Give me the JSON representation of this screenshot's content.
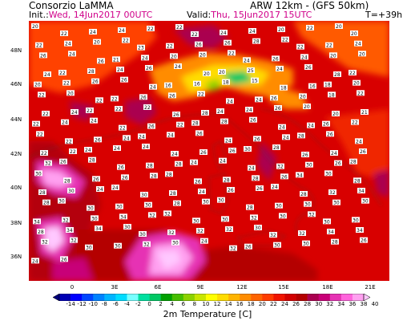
{
  "header": {
    "organization": "Consorzio LaMMA",
    "model": "ARW 12km - (GFS 50km)",
    "init_label": "Init.:",
    "init_value": "Wed, 14Jun2017 00UTC",
    "valid_label": "Valid:",
    "valid_value": "Thu, 15Jun2017 15UTC",
    "forecast_step": "T=+39h"
  },
  "map": {
    "lon_labels": [
      "0",
      "3E",
      "6E",
      "9E",
      "12E",
      "15E",
      "18E",
      "21E"
    ],
    "lat_labels": [
      "48N",
      "46N",
      "44N",
      "42N",
      "40N",
      "38N",
      "36N"
    ],
    "station_values": [
      "20",
      "22",
      "24",
      "24",
      "22",
      "22",
      "22",
      "24",
      "24",
      "20",
      "22",
      "20",
      "20",
      "22",
      "24",
      "20",
      "22",
      "23",
      "22",
      "26",
      "26",
      "28",
      "22",
      "22",
      "22",
      "24",
      "26",
      "24",
      "26",
      "21",
      "24",
      "20",
      "20",
      "22",
      "24",
      "26",
      "24",
      "20",
      "20",
      "24",
      "22",
      "28",
      "24",
      "26",
      "24",
      "20",
      "20",
      "25",
      "24",
      "26",
      "28",
      "22",
      "20",
      "22",
      "26",
      "26",
      "24",
      "16",
      "16",
      "18",
      "15",
      "18",
      "16",
      "18",
      "20",
      "22",
      "20",
      "22",
      "22",
      "26",
      "26",
      "22",
      "24",
      "24",
      "26",
      "20",
      "18",
      "22",
      "22",
      "24",
      "22",
      "22",
      "22",
      "26",
      "28",
      "24",
      "24",
      "26",
      "20",
      "20",
      "21",
      "22",
      "24",
      "24",
      "22",
      "26",
      "22",
      "28",
      "28",
      "26",
      "24",
      "24",
      "26",
      "22",
      "22",
      "22",
      "26",
      "24",
      "24",
      "24",
      "26",
      "24",
      "26",
      "24",
      "28",
      "26",
      "24",
      "22",
      "22",
      "24",
      "24",
      "24",
      "24",
      "26",
      "26",
      "30",
      "28",
      "26",
      "24",
      "26",
      "32",
      "26",
      "28",
      "26",
      "28",
      "28",
      "24",
      "24",
      "24",
      "32",
      "30",
      "26",
      "28",
      "30",
      "28",
      "26",
      "26",
      "28",
      "28",
      "26",
      "28",
      "28",
      "26",
      "34",
      "30",
      "28",
      "28",
      "30",
      "24",
      "24",
      "30",
      "28",
      "24",
      "26",
      "26",
      "24",
      "28",
      "32",
      "34",
      "28",
      "30",
      "30",
      "30",
      "30",
      "28",
      "30",
      "30",
      "28",
      "30",
      "30",
      "30",
      "30",
      "34",
      "32",
      "30",
      "34",
      "32",
      "32",
      "30",
      "30",
      "32",
      "30",
      "32",
      "30",
      "30",
      "28",
      "34",
      "34",
      "30",
      "30",
      "32",
      "32",
      "32",
      "30",
      "32",
      "32",
      "34",
      "34",
      "32",
      "32",
      "30",
      "30",
      "32",
      "30",
      "24",
      "32",
      "26",
      "30",
      "30",
      "28",
      "26",
      "24",
      "26"
    ]
  },
  "legend": {
    "title": "2m Temperature [C]",
    "values": [
      "-14",
      "-12",
      "-10",
      "-8",
      "-6",
      "-4",
      "-2",
      "0",
      "2",
      "4",
      "6",
      "8",
      "10",
      "12",
      "14",
      "16",
      "18",
      "20",
      "22",
      "24",
      "26",
      "28",
      "30",
      "32",
      "34",
      "36",
      "38",
      "40"
    ],
    "colors": [
      "#00007a",
      "#0000b4",
      "#0000ff",
      "#0046ff",
      "#0082ff",
      "#00b4ff",
      "#00dcff",
      "#78ffff",
      "#00e0a0",
      "#00c864",
      "#00a000",
      "#46be00",
      "#8cd200",
      "#c8e600",
      "#ffff00",
      "#ffdc00",
      "#ffb400",
      "#ff8c00",
      "#ff6400",
      "#ff3c00",
      "#f01400",
      "#d20000",
      "#b40000",
      "#aa0050",
      "#c80078",
      "#e632b4",
      "#ff64dc",
      "#ffa0f0",
      "#ffc8ff"
    ]
  }
}
